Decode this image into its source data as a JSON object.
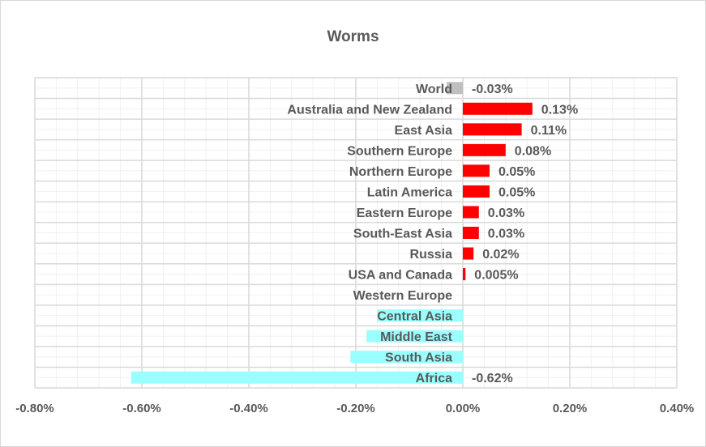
{
  "chart_data": {
    "type": "bar",
    "orientation": "horizontal",
    "title": "Worms",
    "xlabel": "",
    "ylabel": "",
    "xlim": [
      -0.8,
      0.4
    ],
    "x_ticks": [
      "-0.80%",
      "-0.60%",
      "-0.40%",
      "-0.20%",
      "0.00%",
      "0.20%",
      "0.40%"
    ],
    "x_tick_values": [
      -0.8,
      -0.6,
      -0.4,
      -0.2,
      0,
      0.2,
      0.4
    ],
    "grid": true,
    "categories": [
      "World",
      "Australia and New Zealand",
      "East Asia",
      "Southern Europe",
      "Northern Europe",
      "Latin America",
      "Eastern Europe",
      "South-East Asia",
      "Russia",
      "USA and Canada",
      "Western Europe",
      "Central Asia",
      "Middle East",
      "South Asia",
      "Africa"
    ],
    "values": [
      -0.03,
      0.13,
      0.11,
      0.08,
      0.05,
      0.05,
      0.03,
      0.03,
      0.02,
      0.005,
      0,
      -0.16,
      -0.18,
      -0.21,
      -0.62
    ],
    "data_labels": [
      "-0.03%",
      "0.13%",
      "0.11%",
      "0.08%",
      "0.05%",
      "0.05%",
      "0.03%",
      "0.03%",
      "0.02%",
      "0.005%",
      "",
      "",
      "",
      "",
      "-0.62%"
    ],
    "colors": {
      "world": "#bfbfbf",
      "positive": "#ff0000",
      "negative": "#99ffff"
    }
  }
}
